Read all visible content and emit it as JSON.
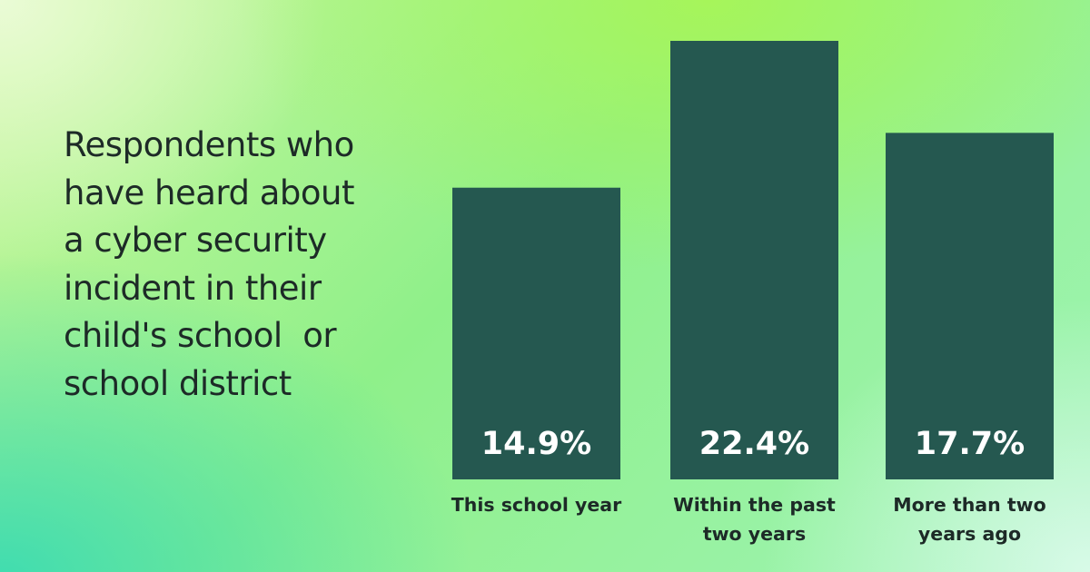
{
  "chart_data": {
    "type": "bar",
    "title": "Respondents who have heard about a cyber security incident in their child's school  or school district",
    "categories": [
      "This school year",
      "Within the past two years",
      "More than two years ago"
    ],
    "values": [
      14.9,
      22.4,
      17.7
    ],
    "value_labels": [
      "14.9%",
      "22.4%",
      "17.7%"
    ],
    "color": "#255850"
  }
}
